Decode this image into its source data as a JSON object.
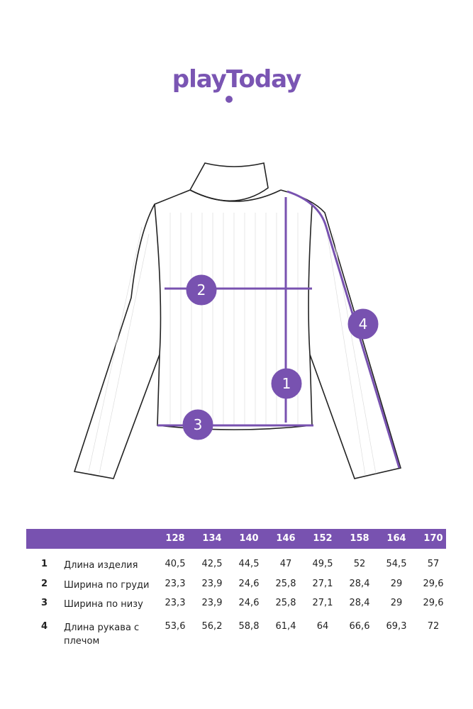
{
  "brand": {
    "logo_text": "playToday",
    "color": "#7852b0"
  },
  "diagram": {
    "markers": [
      "1",
      "2",
      "3",
      "4"
    ]
  },
  "table": {
    "sizes": [
      "128",
      "134",
      "140",
      "146",
      "152",
      "158",
      "164",
      "170"
    ],
    "rows": [
      {
        "n": "1",
        "label": "Длина изделия",
        "values": [
          "40,5",
          "42,5",
          "44,5",
          "47",
          "49,5",
          "52",
          "54,5",
          "57"
        ]
      },
      {
        "n": "2",
        "label": "Ширина по груди",
        "values": [
          "23,3",
          "23,9",
          "24,6",
          "25,8",
          "27,1",
          "28,4",
          "29",
          "29,6"
        ]
      },
      {
        "n": "3",
        "label": "Ширина по низу",
        "values": [
          "23,3",
          "23,9",
          "24,6",
          "25,8",
          "27,1",
          "28,4",
          "29",
          "29,6"
        ]
      },
      {
        "n": "4",
        "label": "Длина рукава с плечом",
        "values": [
          "53,6",
          "56,2",
          "58,8",
          "61,4",
          "64",
          "66,6",
          "69,3",
          "72"
        ]
      }
    ]
  }
}
